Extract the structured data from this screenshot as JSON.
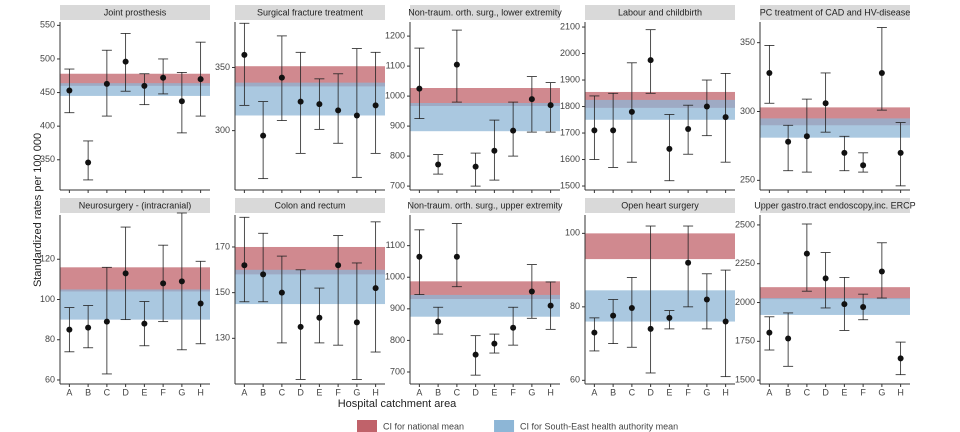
{
  "figure": {
    "ylabel": "Standardized rates per 100 000",
    "xlabel": "Hospital catchment area",
    "categories": [
      "A",
      "B",
      "C",
      "D",
      "E",
      "F",
      "G",
      "H"
    ],
    "legend": [
      {
        "name": "CI for national mean",
        "color": "#c0626a"
      },
      {
        "name": "CI for South-East health authority mean",
        "color": "#8db6d6"
      }
    ]
  },
  "chart_data": [
    {
      "type": "errorbar",
      "title": "Joint prosthesis",
      "ylim": [
        305,
        555
      ],
      "yticks": [
        350,
        400,
        450,
        500,
        550
      ],
      "values": [
        453,
        346,
        463,
        496,
        460,
        472,
        437,
        470
      ],
      "lower": [
        420,
        320,
        415,
        452,
        432,
        448,
        390,
        415
      ],
      "upper": [
        485,
        378,
        513,
        538,
        478,
        500,
        480,
        525
      ],
      "national_ci": [
        460,
        478
      ],
      "southeast_ci": [
        445,
        464
      ]
    },
    {
      "type": "errorbar",
      "title": "Surgical fracture treatment",
      "ylim": [
        253,
        386
      ],
      "yticks": [
        300,
        350
      ],
      "values": [
        360,
        296,
        342,
        323,
        321,
        316,
        312,
        320
      ],
      "lower": [
        320,
        262,
        308,
        282,
        301,
        290,
        263,
        282
      ],
      "upper": [
        385,
        323,
        375,
        362,
        341,
        345,
        365,
        362
      ],
      "national_ci": [
        335,
        351
      ],
      "southeast_ci": [
        312,
        338
      ]
    },
    {
      "type": "errorbar",
      "title": "Non-traum. orth. surg., lower extremity",
      "ylim": [
        687,
        1247
      ],
      "yticks": [
        700,
        800,
        900,
        1000,
        1100,
        1200
      ],
      "values": [
        1025,
        772,
        1105,
        765,
        818,
        885,
        990,
        970
      ],
      "lower": [
        925,
        740,
        980,
        700,
        720,
        800,
        880,
        880
      ],
      "upper": [
        1160,
        805,
        1220,
        810,
        920,
        980,
        1065,
        1045
      ],
      "national_ci": [
        967,
        1027
      ],
      "southeast_ci": [
        883,
        977
      ]
    },
    {
      "type": "errorbar",
      "title": "Labour and childbirth",
      "ylim": [
        1485,
        2119
      ],
      "yticks": [
        1500,
        1600,
        1700,
        1800,
        1900,
        2000,
        2100
      ],
      "values": [
        1710,
        1710,
        1780,
        1975,
        1640,
        1715,
        1800,
        1760
      ],
      "lower": [
        1600,
        1570,
        1590,
        1850,
        1520,
        1620,
        1690,
        1590
      ],
      "upper": [
        1840,
        1850,
        1965,
        2090,
        1770,
        1805,
        1900,
        1925
      ],
      "national_ci": [
        1795,
        1855
      ],
      "southeast_ci": [
        1750,
        1825
      ]
    },
    {
      "type": "errorbar",
      "title": "PC treatment of CAD and HV-disease",
      "ylim": [
        243,
        365
      ],
      "yticks": [
        250,
        300,
        350
      ],
      "values": [
        328,
        278,
        282,
        306,
        270,
        261,
        328,
        270
      ],
      "lower": [
        306,
        257,
        256,
        285,
        257,
        256,
        301,
        246
      ],
      "upper": [
        348,
        290,
        309,
        328,
        282,
        270,
        361,
        292
      ],
      "national_ci": [
        290,
        303
      ],
      "southeast_ci": [
        281,
        295
      ]
    },
    {
      "type": "errorbar",
      "title": "Neurosurgery - (intracranial)",
      "ylim": [
        58,
        142
      ],
      "yticks": [
        60,
        80,
        100,
        120
      ],
      "values": [
        85,
        86,
        89,
        113,
        88,
        108,
        109,
        98
      ],
      "lower": [
        74,
        76,
        63,
        90,
        77,
        89,
        75,
        78
      ],
      "upper": [
        96,
        97,
        116,
        136,
        99,
        127,
        143,
        119
      ],
      "national_ci": [
        104,
        116
      ],
      "southeast_ci": [
        90,
        105
      ]
    },
    {
      "type": "errorbar",
      "title": "Colon and rectum",
      "ylim": [
        110,
        184
      ],
      "yticks": [
        130,
        150,
        170
      ],
      "values": [
        162,
        158,
        150,
        135,
        139,
        162,
        137,
        152
      ],
      "lower": [
        146,
        146,
        128,
        112,
        128,
        127,
        112,
        124
      ],
      "upper": [
        183,
        176,
        166,
        160,
        152,
        175,
        163,
        181
      ],
      "national_ci": [
        158,
        170
      ],
      "southeast_ci": [
        145,
        160
      ]
    },
    {
      "type": "errorbar",
      "title": "Non-traum. orth. surg., upper extremity",
      "ylim": [
        662,
        1197
      ],
      "yticks": [
        700,
        800,
        900,
        1000,
        1100
      ],
      "values": [
        1065,
        860,
        1065,
        755,
        790,
        840,
        955,
        910
      ],
      "lower": [
        945,
        820,
        970,
        690,
        760,
        785,
        870,
        835
      ],
      "upper": [
        1150,
        905,
        1170,
        815,
        820,
        905,
        1040,
        985
      ],
      "national_ci": [
        931,
        987
      ],
      "southeast_ci": [
        875,
        944
      ]
    },
    {
      "type": "errorbar",
      "title": "Open heart surgery",
      "ylim": [
        59,
        105
      ],
      "yticks": [
        60,
        80,
        100
      ],
      "values": [
        73,
        77.6,
        79.7,
        74,
        77,
        92,
        82,
        76
      ],
      "lower": [
        68,
        70,
        69,
        62,
        74,
        80,
        74,
        61
      ],
      "upper": [
        77,
        82,
        88,
        102,
        79,
        102,
        89,
        90
      ],
      "national_ci": [
        93,
        100
      ],
      "southeast_ci": [
        76,
        84.5
      ]
    },
    {
      "type": "errorbar",
      "title": "Upper gastro.tract endoscopy,inc. ERCP",
      "ylim": [
        1475,
        2564
      ],
      "yticks": [
        1500,
        1750,
        2000,
        2250,
        2500
      ],
      "values": [
        1806,
        1768,
        2315,
        2156,
        1990,
        1971,
        2200,
        1640
      ],
      "lower": [
        1694,
        1589,
        2073,
        1965,
        1820,
        1889,
        2029,
        1535
      ],
      "upper": [
        1908,
        1933,
        2506,
        2322,
        2162,
        2054,
        2385,
        1745
      ],
      "national_ci": [
        2022,
        2099
      ],
      "southeast_ci": [
        1920,
        2029
      ]
    }
  ]
}
